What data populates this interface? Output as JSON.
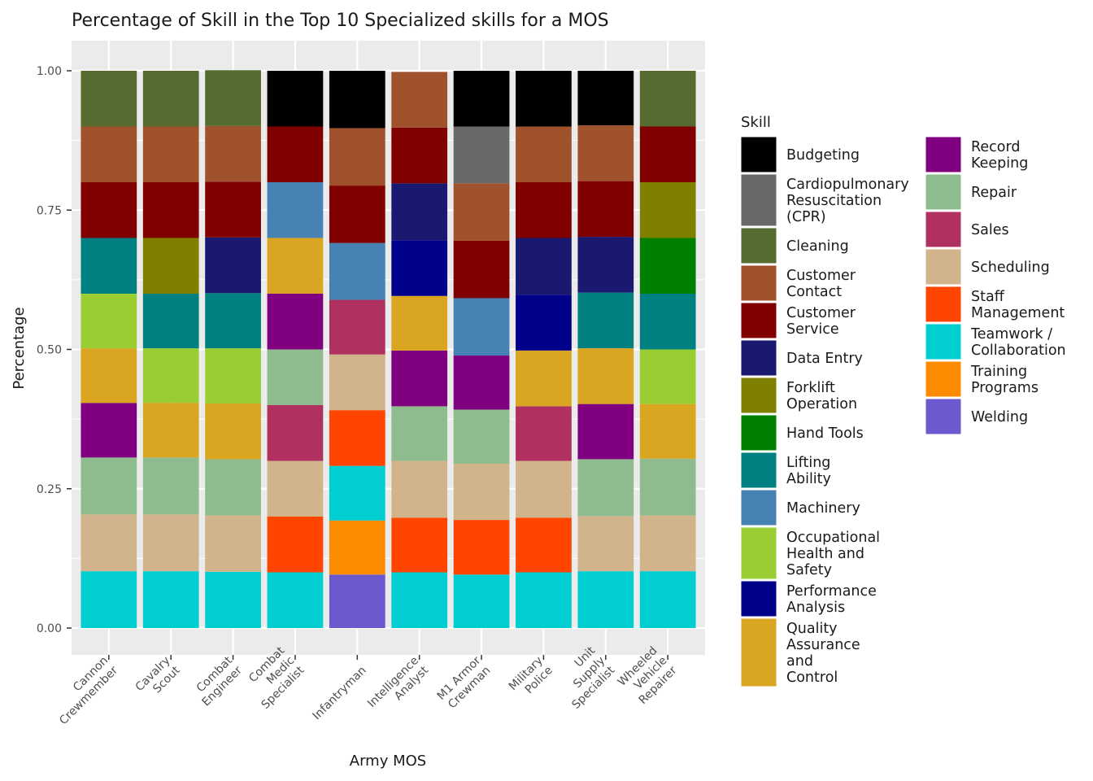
{
  "chart_data": {
    "type": "bar",
    "stacked": true,
    "title": "Percentage of Skill in the Top 10 Specialized skills for a MOS",
    "xlabel": "Army MOS",
    "ylabel": "Percentage",
    "ylim": [
      0,
      1
    ],
    "yticks": [
      "0.00",
      "0.25",
      "0.50",
      "0.75",
      "1.00"
    ],
    "ytick_values": [
      0,
      0.25,
      0.5,
      0.75,
      1.0
    ],
    "grid": true,
    "legend_position": "right",
    "legend_title": "Skill",
    "categories": [
      "Cannon Crewmember",
      "Cavalry Scout",
      "Combat Engineer",
      "Combat Medic Specialist",
      "Infantryman",
      "Intelligence Analyst",
      "M1 Armor Crewman",
      "Military Police",
      "Unit Supply Specialist",
      "Wheeled Vehicle Repairer"
    ],
    "category_label_lines": [
      [
        "Cannon",
        "Crewmember"
      ],
      [
        "Cavalry",
        "Scout"
      ],
      [
        "Combat",
        "Engineer"
      ],
      [
        "Combat",
        "Medic",
        "Specialist"
      ],
      [
        "Infantryman"
      ],
      [
        "Intelligence",
        "Analyst"
      ],
      [
        "M1 Armor",
        "Crewman"
      ],
      [
        "Military",
        "Police"
      ],
      [
        "Unit",
        "Supply",
        "Specialist"
      ],
      [
        "Wheeled",
        "Vehicle",
        "Repairer"
      ]
    ],
    "skills": [
      {
        "name": "Budgeting",
        "color": "#000000",
        "label_lines": [
          "Budgeting"
        ]
      },
      {
        "name": "Cardiopulmonary Resuscitation (CPR)",
        "color": "#696969",
        "label_lines": [
          "Cardiopulmonary",
          "Resuscitation",
          "(CPR)"
        ]
      },
      {
        "name": "Cleaning",
        "color": "#556b2f",
        "label_lines": [
          "Cleaning"
        ]
      },
      {
        "name": "Customer Contact",
        "color": "#a0522d",
        "label_lines": [
          "Customer",
          "Contact"
        ]
      },
      {
        "name": "Customer Service",
        "color": "#800000",
        "label_lines": [
          "Customer",
          "Service"
        ]
      },
      {
        "name": "Data Entry",
        "color": "#191970",
        "label_lines": [
          "Data Entry"
        ]
      },
      {
        "name": "Forklift Operation",
        "color": "#808000",
        "label_lines": [
          "Forklift",
          "Operation"
        ]
      },
      {
        "name": "Hand Tools",
        "color": "#008000",
        "label_lines": [
          "Hand Tools"
        ]
      },
      {
        "name": "Lifting Ability",
        "color": "#008080",
        "label_lines": [
          "Lifting",
          "Ability"
        ]
      },
      {
        "name": "Machinery",
        "color": "#4682b4",
        "label_lines": [
          "Machinery"
        ]
      },
      {
        "name": "Occupational Health and Safety",
        "color": "#9acd32",
        "label_lines": [
          "Occupational",
          "Health and",
          "Safety"
        ]
      },
      {
        "name": "Performance Analysis",
        "color": "#00008b",
        "label_lines": [
          "Performance",
          "Analysis"
        ]
      },
      {
        "name": "Quality Assurance and Control",
        "color": "#daa520",
        "label_lines": [
          "Quality",
          "Assurance",
          "and",
          "Control"
        ]
      },
      {
        "name": "Record Keeping",
        "color": "#800080",
        "label_lines": [
          "Record",
          "Keeping"
        ]
      },
      {
        "name": "Repair",
        "color": "#8fbc8f",
        "label_lines": [
          "Repair"
        ]
      },
      {
        "name": "Sales",
        "color": "#b03060",
        "label_lines": [
          "Sales"
        ]
      },
      {
        "name": "Scheduling",
        "color": "#d2b48c",
        "label_lines": [
          "Scheduling"
        ]
      },
      {
        "name": "Staff Management",
        "color": "#ff4500",
        "label_lines": [
          "Staff",
          "Management"
        ]
      },
      {
        "name": "Teamwork / Collaboration",
        "color": "#00ced1",
        "label_lines": [
          "Teamwork /",
          "Collaboration"
        ]
      },
      {
        "name": "Training Programs",
        "color": "#ff8c00",
        "label_lines": [
          "Training",
          "Programs"
        ]
      },
      {
        "name": "Welding",
        "color": "#6a5acd",
        "label_lines": [
          "Welding"
        ]
      }
    ],
    "stacks": [
      [
        [
          "Teamwork / Collaboration",
          0.102
        ],
        [
          "Scheduling",
          0.102
        ],
        [
          "Repair",
          0.102
        ],
        [
          "Record Keeping",
          0.098
        ],
        [
          "Quality Assurance and Control",
          0.098
        ],
        [
          "Occupational Health and Safety",
          0.098
        ],
        [
          "Lifting Ability",
          0.1
        ],
        [
          "Customer Service",
          0.1
        ],
        [
          "Customer Contact",
          0.1
        ],
        [
          "Cleaning",
          0.1
        ]
      ],
      [
        [
          "Teamwork / Collaboration",
          0.102
        ],
        [
          "Scheduling",
          0.102
        ],
        [
          "Repair",
          0.102
        ],
        [
          "Quality Assurance and Control",
          0.098
        ],
        [
          "Occupational Health and Safety",
          0.098
        ],
        [
          "Lifting Ability",
          0.098
        ],
        [
          "Forklift Operation",
          0.1
        ],
        [
          "Customer Service",
          0.1
        ],
        [
          "Customer Contact",
          0.1
        ],
        [
          "Cleaning",
          0.1
        ]
      ],
      [
        [
          "Teamwork / Collaboration",
          0.101
        ],
        [
          "Scheduling",
          0.101
        ],
        [
          "Repair",
          0.101
        ],
        [
          "Quality Assurance and Control",
          0.1
        ],
        [
          "Occupational Health and Safety",
          0.099
        ],
        [
          "Lifting Ability",
          0.099
        ],
        [
          "Data Entry",
          0.1
        ],
        [
          "Customer Service",
          0.1
        ],
        [
          "Customer Contact",
          0.1
        ],
        [
          "Cleaning",
          0.1
        ]
      ],
      [
        [
          "Teamwork / Collaboration",
          0.1
        ],
        [
          "Staff Management",
          0.1
        ],
        [
          "Scheduling",
          0.1
        ],
        [
          "Sales",
          0.1
        ],
        [
          "Repair",
          0.1
        ],
        [
          "Record Keeping",
          0.1
        ],
        [
          "Quality Assurance and Control",
          0.1
        ],
        [
          "Machinery",
          0.1
        ],
        [
          "Customer Service",
          0.1
        ],
        [
          "Budgeting",
          0.1
        ]
      ],
      [
        [
          "Welding",
          0.096
        ],
        [
          "Training Programs",
          0.097
        ],
        [
          "Teamwork / Collaboration",
          0.098
        ],
        [
          "Staff Management",
          0.1
        ],
        [
          "Scheduling",
          0.1
        ],
        [
          "Sales",
          0.098
        ],
        [
          "Machinery",
          0.102
        ],
        [
          "Customer Service",
          0.103
        ],
        [
          "Customer Contact",
          0.103
        ],
        [
          "Budgeting",
          0.103
        ]
      ],
      [
        [
          "Teamwork / Collaboration",
          0.1
        ],
        [
          "Staff Management",
          0.098
        ],
        [
          "Scheduling",
          0.102
        ],
        [
          "Repair",
          0.098
        ],
        [
          "Record Keeping",
          0.1
        ],
        [
          "Quality Assurance and Control",
          0.098
        ],
        [
          "Performance Analysis",
          0.1
        ],
        [
          "Data Entry",
          0.102
        ],
        [
          "Customer Service",
          0.1
        ],
        [
          "Customer Contact",
          0.1
        ]
      ],
      [
        [
          "Teamwork / Collaboration",
          0.096
        ],
        [
          "Staff Management",
          0.098
        ],
        [
          "Scheduling",
          0.101
        ],
        [
          "Repair",
          0.097
        ],
        [
          "Record Keeping",
          0.097
        ],
        [
          "Machinery",
          0.103
        ],
        [
          "Customer Service",
          0.103
        ],
        [
          "Customer Contact",
          0.103
        ],
        [
          "Cardiopulmonary Resuscitation (CPR)",
          0.102
        ],
        [
          "Budgeting",
          0.1
        ]
      ],
      [
        [
          "Teamwork / Collaboration",
          0.1
        ],
        [
          "Staff Management",
          0.098
        ],
        [
          "Scheduling",
          0.102
        ],
        [
          "Sales",
          0.098
        ],
        [
          "Quality Assurance and Control",
          0.1
        ],
        [
          "Performance Analysis",
          0.1
        ],
        [
          "Data Entry",
          0.102
        ],
        [
          "Customer Service",
          0.1
        ],
        [
          "Customer Contact",
          0.1
        ],
        [
          "Budgeting",
          0.1
        ]
      ],
      [
        [
          "Teamwork / Collaboration",
          0.102
        ],
        [
          "Scheduling",
          0.099
        ],
        [
          "Repair",
          0.102
        ],
        [
          "Record Keeping",
          0.099
        ],
        [
          "Quality Assurance and Control",
          0.1
        ],
        [
          "Lifting Ability",
          0.1
        ],
        [
          "Data Entry",
          0.1
        ],
        [
          "Customer Service",
          0.1
        ],
        [
          "Customer Contact",
          0.1
        ],
        [
          "Budgeting",
          0.098
        ]
      ],
      [
        [
          "Teamwork / Collaboration",
          0.102
        ],
        [
          "Scheduling",
          0.1
        ],
        [
          "Repair",
          0.102
        ],
        [
          "Quality Assurance and Control",
          0.098
        ],
        [
          "Occupational Health and Safety",
          0.098
        ],
        [
          "Lifting Ability",
          0.1
        ],
        [
          "Hand Tools",
          0.1
        ],
        [
          "Forklift Operation",
          0.1
        ],
        [
          "Customer Service",
          0.1
        ],
        [
          "Cleaning",
          0.1
        ]
      ]
    ]
  }
}
